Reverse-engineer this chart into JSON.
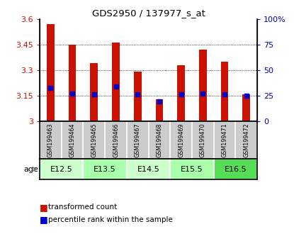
{
  "title": "GDS2950 / 137977_s_at",
  "samples": [
    "GSM199463",
    "GSM199464",
    "GSM199465",
    "GSM199466",
    "GSM199467",
    "GSM199468",
    "GSM199469",
    "GSM199470",
    "GSM199471",
    "GSM199472"
  ],
  "bar_values": [
    3.57,
    3.45,
    3.34,
    3.46,
    3.29,
    3.13,
    3.33,
    3.42,
    3.35,
    3.16
  ],
  "percentile_values": [
    0.33,
    0.275,
    0.265,
    0.34,
    0.265,
    0.195,
    0.265,
    0.273,
    0.265,
    0.253
  ],
  "bar_color": "#cc1100",
  "percentile_color": "#0000cc",
  "ymin": 3.0,
  "ymax": 3.6,
  "y_ticks": [
    3.0,
    3.15,
    3.3,
    3.45,
    3.6
  ],
  "y_tick_labels": [
    "3",
    "3.15",
    "3.3",
    "3.45",
    "3.6"
  ],
  "right_yticks": [
    0.0,
    0.25,
    0.5,
    0.75,
    1.0
  ],
  "right_ytick_labels": [
    "0",
    "25",
    "50",
    "75",
    "100%"
  ],
  "age_groups": [
    {
      "label": "E12.5",
      "start": 0,
      "end": 2,
      "color": "#ccffcc"
    },
    {
      "label": "E13.5",
      "start": 2,
      "end": 4,
      "color": "#aaffaa"
    },
    {
      "label": "E14.5",
      "start": 4,
      "end": 6,
      "color": "#ccffcc"
    },
    {
      "label": "E15.5",
      "start": 6,
      "end": 8,
      "color": "#aaffaa"
    },
    {
      "label": "E16.5",
      "start": 8,
      "end": 10,
      "color": "#55dd55"
    }
  ],
  "age_label": "age",
  "legend_bar_label": "transformed count",
  "legend_pct_label": "percentile rank within the sample",
  "tick_color_left": "#cc1100",
  "tick_color_right": "#0000cc",
  "grid_color": "#000000",
  "sample_bg": "#cccccc",
  "bar_width": 0.35
}
